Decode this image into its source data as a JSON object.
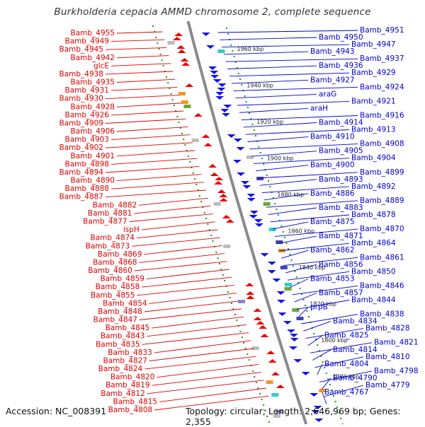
{
  "title": "Burkholderia cepacia AMMD chromosome 2, complete sequence",
  "footer": {
    "accession": "Accession: NC_008391",
    "summary": "Topology: circular; Length: 2,646,969 bp; Genes: 2,355"
  },
  "colors": {
    "left_label": "#dd0000",
    "right_label": "#0000cc",
    "backbone": "#8a8a8a",
    "tick_dots": "#228b22",
    "forward_gene": "#ee0000",
    "reverse_gene": "#1414e6"
  },
  "scale_ticks": [
    "1960 kbp",
    "1940 kbp",
    "1920 kbp",
    "1900 kbp",
    "1880 kbp",
    "1860 kbp",
    "1840 kbp",
    "1820 kbp",
    "1800 kbp",
    "1780 kbp"
  ],
  "left_labels": [
    "Bamb_4955",
    "Bamb_4949",
    "Bamb_4945",
    "Bamb_4942",
    "glcE",
    "Bamb_4938",
    "Bamb_4935",
    "Bamb_4931",
    "Bamb_4930",
    "Bamb_4928",
    "Bamb_4926",
    "Bamb_4909",
    "Bamb_4906",
    "Bamb_4903",
    "Bamb_4902",
    "Bamb_4901",
    "Bamb_4898",
    "Bamb_4894",
    "Bamb_4890",
    "Bamb_4888",
    "Bamb_4887",
    "Bamb_4882",
    "Bamb_4881",
    "Bamb_4877",
    "ispH",
    "Bamb_4874",
    "Bamb_4873",
    "Bamb_4869",
    "Bamb_4868",
    "Bamb_4860",
    "Bamb_4859",
    "Bamb_4858",
    "Bamb_4855",
    "Bamb_4854",
    "Bamb_4848",
    "Bamb_4847",
    "Bamb_4845",
    "Bamb_4843",
    "Bamb_4835",
    "Bamb_4833",
    "Bamb_4827",
    "Bamb_4824",
    "Bamb_4820",
    "Bamb_4819",
    "Bamb_4812",
    "Bamb_4815",
    "Bamb_4808"
  ],
  "right_labels": [
    "Bamb_4951",
    "Bamb_4950",
    "Bamb_4947",
    "Bamb_4943",
    "Bamb_4937",
    "Bamb_4936",
    "Bamb_4929",
    "Bamb_4927",
    "Bamb_4924",
    "araG",
    "Bamb_4921",
    "araH",
    "Bamb_4916",
    "Bamb_4914",
    "Bamb_4913",
    "Bamb_4910",
    "Bamb_4908",
    "Bamb_4905",
    "Bamb_4904",
    "Bamb_4900",
    "Bamb_4899",
    "Bamb_4893",
    "Bamb_4892",
    "Bamb_4886",
    "Bamb_4889",
    "Bamb_4883",
    "Bamb_4878",
    "Bamb_4875",
    "Bamb_4870",
    "Bamb_4871",
    "Bamb_4864",
    "Bamb_4862",
    "Bamb_4861",
    "Bamb_4856",
    "Bamb_4850",
    "Bamb_4853",
    "Bamb_4846",
    "Bamb_4857",
    "Bamb_4844",
    "prpB",
    "Bamb_4838",
    "Bamb_4834",
    "Bamb_4828",
    "Bamb_4825",
    "Bamb_4821",
    "Bamb_4814",
    "Bamb_4810",
    "Bamb_4804",
    "Bamb_4798",
    "Bamb_4790",
    "Bamb_4779",
    "Bamb_4767"
  ]
}
